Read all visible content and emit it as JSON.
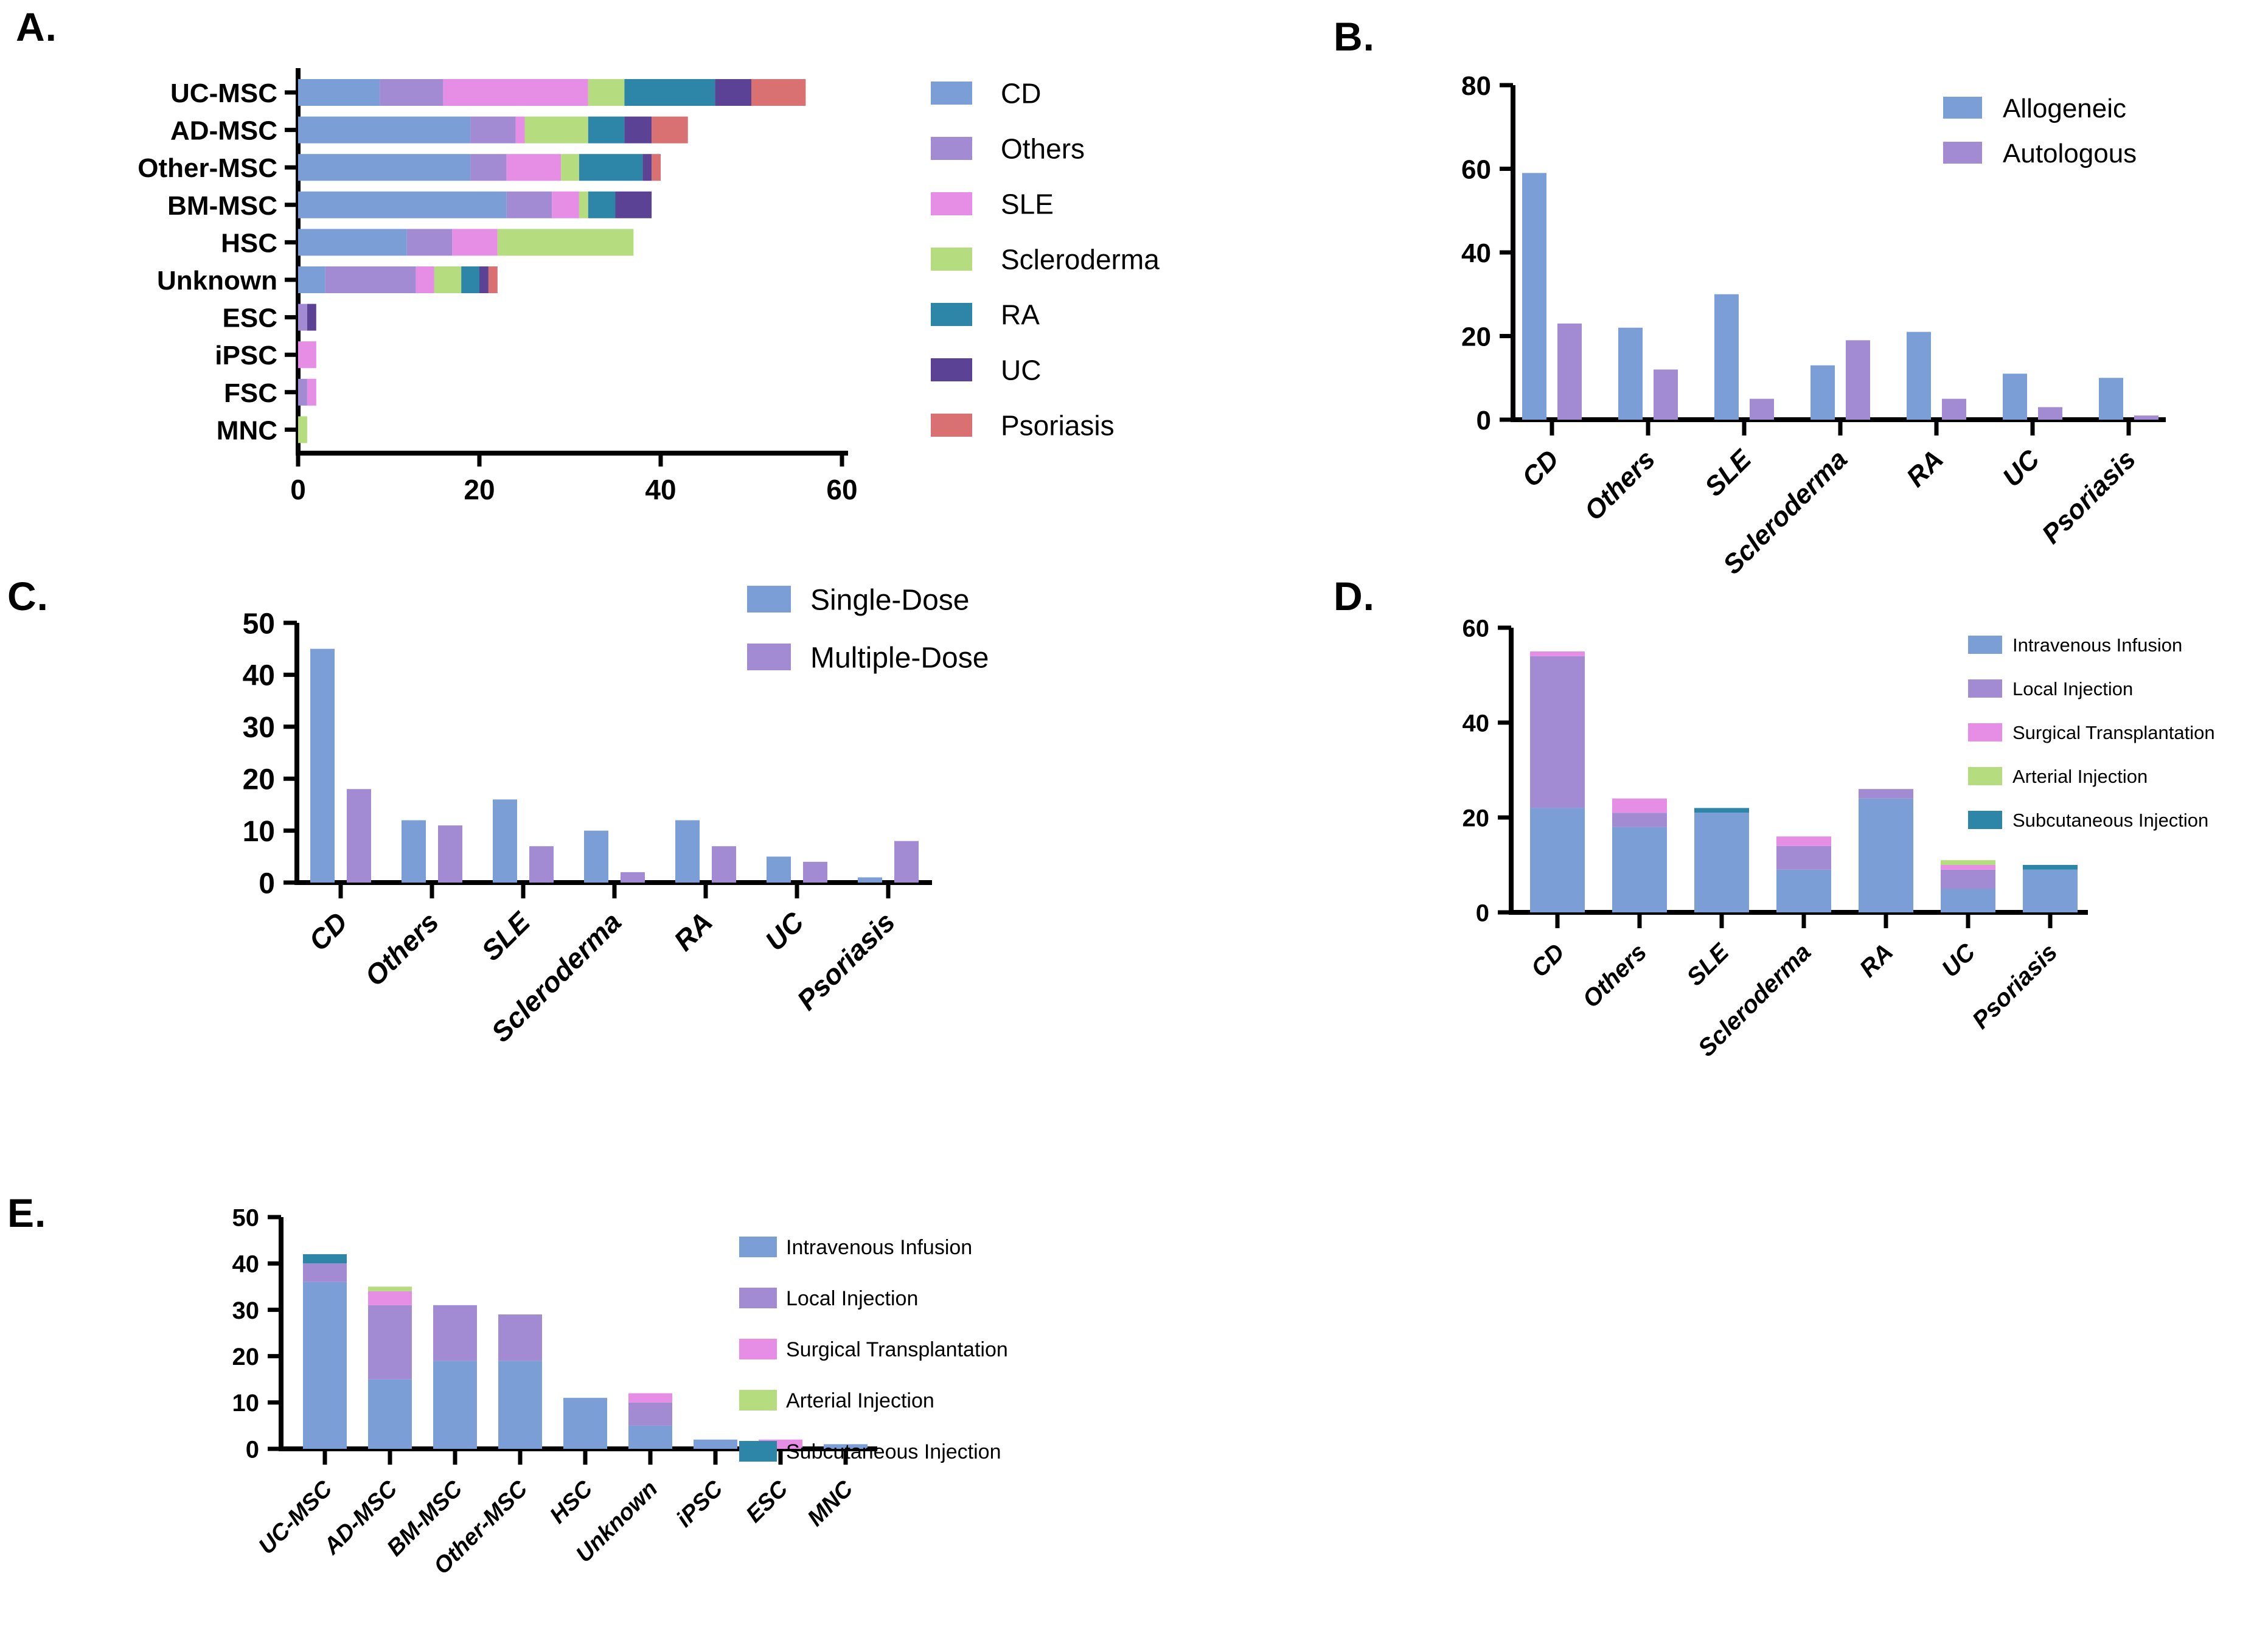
{
  "figure": {
    "panel_labels": [
      "A.",
      "B.",
      "C.",
      "D.",
      "E."
    ]
  },
  "chart_data": [
    {
      "id": "A",
      "type": "bar",
      "variant": "stacked-horizontal",
      "categories": [
        "UC-MSC",
        "AD-MSC",
        "Other-MSC",
        "BM-MSC",
        "HSC",
        "Unknown",
        "ESC",
        "iPSC",
        "FSC",
        "MNC"
      ],
      "series": [
        {
          "name": "CD",
          "color": "#7B9ED7",
          "values": [
            9,
            19,
            19,
            23,
            12,
            3,
            0,
            0,
            0,
            0
          ]
        },
        {
          "name": "Others",
          "color": "#A28BD3",
          "values": [
            7,
            5,
            4,
            5,
            5,
            10,
            1,
            0,
            1,
            0
          ]
        },
        {
          "name": "SLE",
          "color": "#E68DE6",
          "values": [
            16,
            1,
            6,
            3,
            5,
            2,
            0,
            2,
            1,
            0
          ]
        },
        {
          "name": "Scleroderma",
          "color": "#B5DC7E",
          "values": [
            4,
            7,
            2,
            1,
            15,
            3,
            0,
            0,
            0,
            1
          ]
        },
        {
          "name": "RA",
          "color": "#2D86A8",
          "values": [
            10,
            4,
            7,
            3,
            0,
            2,
            0,
            0,
            0,
            0
          ]
        },
        {
          "name": "UC",
          "color": "#5B4295",
          "values": [
            4,
            3,
            1,
            4,
            0,
            1,
            1,
            0,
            0,
            0
          ]
        },
        {
          "name": "Psoriasis",
          "color": "#D97072",
          "values": [
            6,
            4,
            1,
            0,
            0,
            1,
            0,
            0,
            0,
            0
          ]
        }
      ],
      "value_axis": {
        "min": 0,
        "max": 60,
        "ticks": [
          0,
          20,
          40,
          60
        ]
      },
      "legend_position": "right",
      "grid": false
    },
    {
      "id": "B",
      "type": "bar",
      "variant": "grouped-vertical",
      "categories": [
        "CD",
        "Others",
        "SLE",
        "Scleroderma",
        "RA",
        "UC",
        "Psoriasis"
      ],
      "series": [
        {
          "name": "Allogeneic",
          "color": "#7B9ED7",
          "values": [
            59,
            22,
            30,
            13,
            21,
            11,
            10
          ]
        },
        {
          "name": "Autologous",
          "color": "#A28BD3",
          "values": [
            23,
            12,
            5,
            19,
            5,
            3,
            1
          ]
        }
      ],
      "value_axis": {
        "min": 0,
        "max": 80,
        "ticks": [
          0,
          20,
          40,
          60,
          80
        ]
      },
      "legend_position": "top-right",
      "grid": false
    },
    {
      "id": "C",
      "type": "bar",
      "variant": "grouped-vertical",
      "categories": [
        "CD",
        "Others",
        "SLE",
        "Scleroderma",
        "RA",
        "UC",
        "Psoriasis"
      ],
      "series": [
        {
          "name": "Single-Dose",
          "color": "#7B9ED7",
          "values": [
            45,
            12,
            16,
            10,
            12,
            5,
            1
          ]
        },
        {
          "name": "Multiple-Dose",
          "color": "#A28BD3",
          "values": [
            18,
            11,
            7,
            2,
            7,
            4,
            8
          ]
        }
      ],
      "value_axis": {
        "min": 0,
        "max": 50,
        "ticks": [
          0,
          10,
          20,
          30,
          40,
          50
        ]
      },
      "legend_position": "top-right",
      "grid": false
    },
    {
      "id": "D",
      "type": "bar",
      "variant": "stacked-vertical",
      "categories": [
        "CD",
        "Others",
        "SLE",
        "Scleroderma",
        "RA",
        "UC",
        "Psoriasis"
      ],
      "series": [
        {
          "name": "Intravenous Infusion",
          "color": "#7B9ED7",
          "values": [
            22,
            18,
            21,
            9,
            24,
            5,
            9
          ]
        },
        {
          "name": "Local Injection",
          "color": "#A28BD3",
          "values": [
            32,
            3,
            0,
            5,
            2,
            4,
            0
          ]
        },
        {
          "name": "Surgical Transplantation",
          "color": "#E68DE6",
          "values": [
            1,
            3,
            0,
            2,
            0,
            1,
            0
          ]
        },
        {
          "name": "Arterial Injection",
          "color": "#B5DC7E",
          "values": [
            0,
            0,
            0,
            0,
            0,
            1,
            0
          ]
        },
        {
          "name": "Subcutaneous Injection",
          "color": "#2D86A8",
          "values": [
            0,
            0,
            1,
            0,
            0,
            0,
            1
          ]
        }
      ],
      "value_axis": {
        "min": 0,
        "max": 60,
        "ticks": [
          0,
          20,
          40,
          60
        ]
      },
      "legend_position": "right",
      "grid": false
    },
    {
      "id": "E",
      "type": "bar",
      "variant": "stacked-vertical",
      "categories": [
        "UC-MSC",
        "AD-MSC",
        "BM-MSC",
        "Other-MSC",
        "HSC",
        "Unknown",
        "iPSC",
        "ESC",
        "MNC"
      ],
      "series": [
        {
          "name": "Intravenous Infusion",
          "color": "#7B9ED7",
          "values": [
            36,
            15,
            19,
            19,
            11,
            5,
            2,
            0,
            1
          ]
        },
        {
          "name": "Local Injection",
          "color": "#A28BD3",
          "values": [
            4,
            16,
            12,
            10,
            0,
            5,
            0,
            0,
            0
          ]
        },
        {
          "name": "Surgical Transplantation",
          "color": "#E68DE6",
          "values": [
            0,
            3,
            0,
            0,
            0,
            2,
            0,
            2,
            0
          ]
        },
        {
          "name": "Arterial Injection",
          "color": "#B5DC7E",
          "values": [
            0,
            1,
            0,
            0,
            0,
            0,
            0,
            0,
            0
          ]
        },
        {
          "name": "Subcutaneous Injection",
          "color": "#2D86A8",
          "values": [
            2,
            0,
            0,
            0,
            0,
            0,
            0,
            0,
            0
          ]
        }
      ],
      "value_axis": {
        "min": 0,
        "max": 50,
        "ticks": [
          0,
          10,
          20,
          30,
          40,
          50
        ]
      },
      "legend_position": "right",
      "grid": false
    }
  ]
}
